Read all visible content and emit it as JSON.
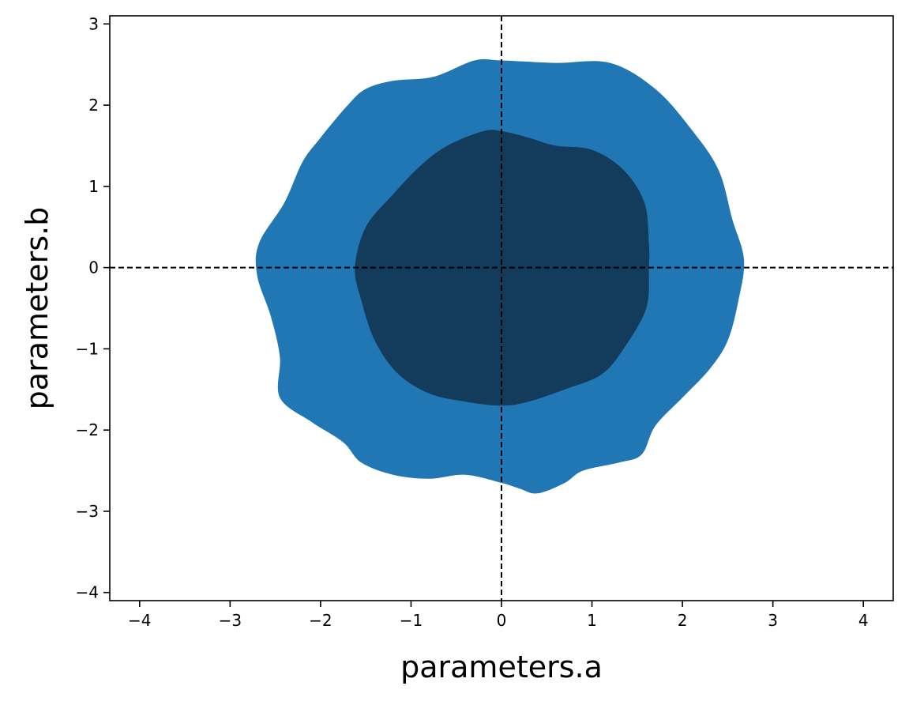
{
  "chart_data": {
    "type": "contour",
    "title": "",
    "xlabel": "parameters.a",
    "ylabel": "parameters.b",
    "xlim": [
      -4.33,
      4.33
    ],
    "ylim": [
      -4.1,
      3.1
    ],
    "xticks": [
      -4,
      -3,
      -2,
      -1,
      0,
      1,
      2,
      3,
      4
    ],
    "yticks": [
      -4,
      -3,
      -2,
      -1,
      0,
      1,
      2,
      3
    ],
    "xtick_labels": [
      "−4",
      "−3",
      "−2",
      "−1",
      "0",
      "1",
      "2",
      "3",
      "4"
    ],
    "ytick_labels": [
      "−4",
      "−3",
      "−2",
      "−1",
      "0",
      "1",
      "2",
      "3"
    ],
    "grid": false,
    "reference_lines": {
      "x": 0,
      "y": 0,
      "style": "dashed",
      "color": "#000000"
    },
    "levels": [
      {
        "level": "outer",
        "color": "#2077b4",
        "boundary": [
          [
            0.0,
            2.55
          ],
          [
            0.6,
            2.52
          ],
          [
            1.2,
            2.52
          ],
          [
            1.7,
            2.2
          ],
          [
            2.1,
            1.7
          ],
          [
            2.4,
            1.2
          ],
          [
            2.55,
            0.6
          ],
          [
            2.68,
            0.1
          ],
          [
            2.62,
            -0.4
          ],
          [
            2.5,
            -0.9
          ],
          [
            2.3,
            -1.25
          ],
          [
            2.0,
            -1.6
          ],
          [
            1.7,
            -1.95
          ],
          [
            1.55,
            -2.3
          ],
          [
            1.3,
            -2.4
          ],
          [
            0.9,
            -2.5
          ],
          [
            0.7,
            -2.65
          ],
          [
            0.4,
            -2.78
          ],
          [
            0.2,
            -2.72
          ],
          [
            0.0,
            -2.65
          ],
          [
            -0.4,
            -2.55
          ],
          [
            -0.8,
            -2.6
          ],
          [
            -1.2,
            -2.55
          ],
          [
            -1.55,
            -2.4
          ],
          [
            -1.75,
            -2.15
          ],
          [
            -2.1,
            -1.9
          ],
          [
            -2.45,
            -1.6
          ],
          [
            -2.45,
            -1.1
          ],
          [
            -2.55,
            -0.6
          ],
          [
            -2.7,
            -0.1
          ],
          [
            -2.68,
            0.3
          ],
          [
            -2.4,
            0.8
          ],
          [
            -2.2,
            1.3
          ],
          [
            -2.0,
            1.6
          ],
          [
            -1.7,
            2.0
          ],
          [
            -1.5,
            2.2
          ],
          [
            -1.2,
            2.3
          ],
          [
            -0.75,
            2.35
          ],
          [
            -0.3,
            2.55
          ]
        ]
      },
      {
        "level": "inner",
        "color": "#133b5c",
        "boundary": [
          [
            0.0,
            1.68
          ],
          [
            0.3,
            1.6
          ],
          [
            0.6,
            1.5
          ],
          [
            1.0,
            1.45
          ],
          [
            1.35,
            1.2
          ],
          [
            1.58,
            0.8
          ],
          [
            1.63,
            0.3
          ],
          [
            1.63,
            0.0
          ],
          [
            1.6,
            -0.5
          ],
          [
            1.35,
            -1.0
          ],
          [
            1.1,
            -1.32
          ],
          [
            0.7,
            -1.5
          ],
          [
            0.3,
            -1.65
          ],
          [
            0.0,
            -1.7
          ],
          [
            -0.4,
            -1.65
          ],
          [
            -0.8,
            -1.55
          ],
          [
            -1.15,
            -1.3
          ],
          [
            -1.4,
            -0.9
          ],
          [
            -1.55,
            -0.4
          ],
          [
            -1.62,
            0.0
          ],
          [
            -1.5,
            0.5
          ],
          [
            -1.2,
            0.9
          ],
          [
            -0.9,
            1.25
          ],
          [
            -0.6,
            1.5
          ],
          [
            -0.2,
            1.68
          ]
        ]
      }
    ]
  }
}
